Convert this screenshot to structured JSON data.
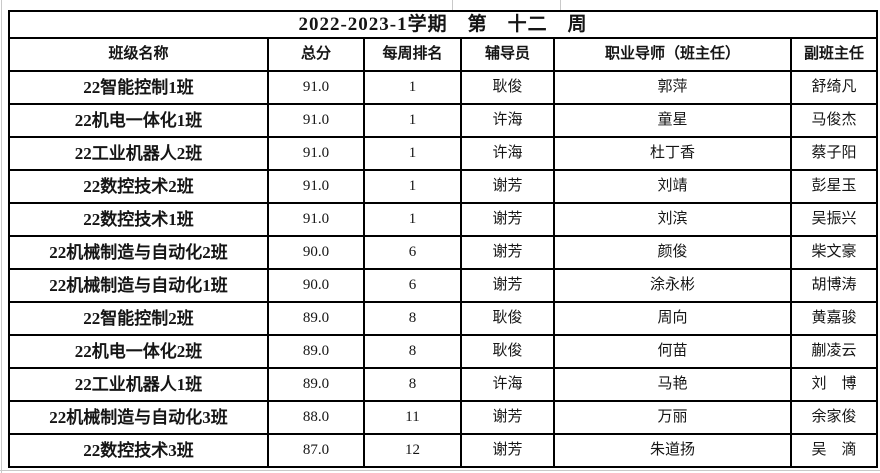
{
  "title": "2022-2023-1学期　第　十二　周",
  "table": {
    "headers": [
      "班级名称",
      "总分",
      "每周排名",
      "辅导员",
      "职业导师（班主任）",
      "副班主任"
    ],
    "rows": [
      {
        "class": "22智能控制1班",
        "score": "91.0",
        "rank": "1",
        "counselor": "耿俊",
        "mentor": "郭萍",
        "deputy": "舒绮凡"
      },
      {
        "class": "22机电一体化1班",
        "score": "91.0",
        "rank": "1",
        "counselor": "许海",
        "mentor": "童星",
        "deputy": "马俊杰"
      },
      {
        "class": "22工业机器人2班",
        "score": "91.0",
        "rank": "1",
        "counselor": "许海",
        "mentor": "杜丁香",
        "deputy": "蔡子阳"
      },
      {
        "class": "22数控技术2班",
        "score": "91.0",
        "rank": "1",
        "counselor": "谢芳",
        "mentor": "刘靖",
        "deputy": "彭星玉"
      },
      {
        "class": "22数控技术1班",
        "score": "91.0",
        "rank": "1",
        "counselor": "谢芳",
        "mentor": "刘滨",
        "deputy": "吴振兴"
      },
      {
        "class": "22机械制造与自动化2班",
        "score": "90.0",
        "rank": "6",
        "counselor": "谢芳",
        "mentor": "颜俊",
        "deputy": "柴文豪"
      },
      {
        "class": "22机械制造与自动化1班",
        "score": "90.0",
        "rank": "6",
        "counselor": "谢芳",
        "mentor": "涂永彬",
        "deputy": "胡博涛"
      },
      {
        "class": "22智能控制2班",
        "score": "89.0",
        "rank": "8",
        "counselor": "耿俊",
        "mentor": "周向",
        "deputy": "黄嘉骏"
      },
      {
        "class": "22机电一体化2班",
        "score": "89.0",
        "rank": "8",
        "counselor": "耿俊",
        "mentor": "何苗",
        "deputy": "蒯凌云"
      },
      {
        "class": "22工业机器人1班",
        "score": "89.0",
        "rank": "8",
        "counselor": "许海",
        "mentor": "马艳",
        "deputy": "刘　博"
      },
      {
        "class": "22机械制造与自动化3班",
        "score": "88.0",
        "rank": "11",
        "counselor": "谢芳",
        "mentor": "万丽",
        "deputy": "余家俊"
      },
      {
        "class": "22数控技术3班",
        "score": "87.0",
        "rank": "12",
        "counselor": "谢芳",
        "mentor": "朱道扬",
        "deputy": "吴　滴"
      }
    ]
  },
  "colors": {
    "border": "#000000",
    "text": "#151515",
    "background": "#ffffff",
    "margin_gridline": "#c9c9c9"
  }
}
